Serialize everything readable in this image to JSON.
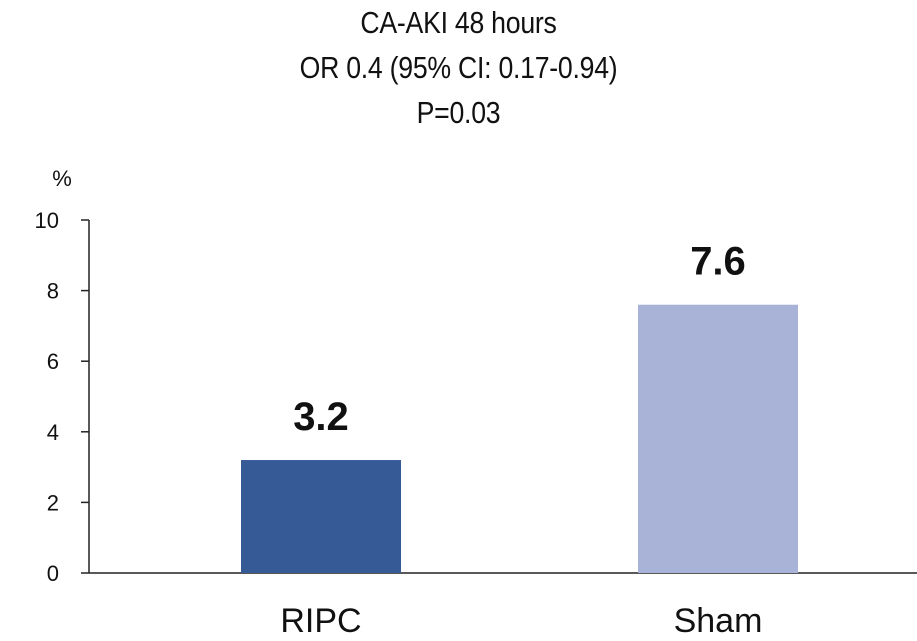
{
  "chart_data": {
    "type": "bar",
    "title_lines": [
      "CA-AKI 48 hours",
      "OR 0.4 (95% CI: 0.17-0.94)",
      "P=0.03"
    ],
    "ylabel": "%",
    "xlabel": "",
    "ylim": [
      0,
      10
    ],
    "yticks": [
      0,
      2,
      4,
      6,
      8,
      10
    ],
    "categories": [
      "RIPC",
      "Sham"
    ],
    "values": [
      3.2,
      7.6
    ],
    "data_labels": [
      "3.2",
      "7.6"
    ],
    "colors": [
      "#365a96",
      "#a8b3d7"
    ],
    "grid": false,
    "legend": "none"
  }
}
